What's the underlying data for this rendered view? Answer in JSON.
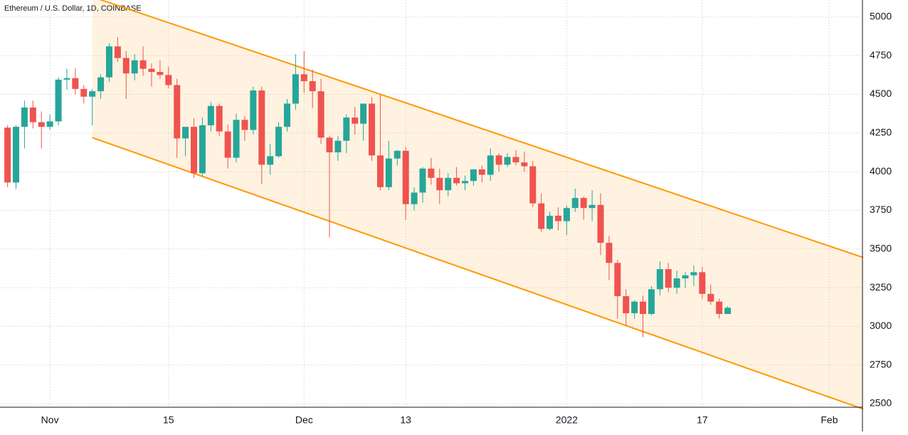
{
  "chart_data": {
    "type": "candlestick",
    "title": "Ethereum / U.S. Dollar, 1D, COINBASE",
    "categories": [
      null,
      null,
      null,
      null,
      null,
      "Nov",
      null,
      null,
      null,
      null,
      null,
      null,
      null,
      null,
      null,
      null,
      null,
      null,
      null,
      "15",
      null,
      null,
      null,
      null,
      null,
      null,
      null,
      null,
      null,
      null,
      null,
      null,
      null,
      null,
      null,
      "Dec",
      null,
      null,
      null,
      null,
      null,
      null,
      null,
      null,
      null,
      null,
      null,
      "13",
      null,
      null,
      null,
      null,
      null,
      null,
      null,
      null,
      null,
      null,
      null,
      null,
      null,
      null,
      null,
      null,
      null,
      null,
      "2022",
      null,
      null,
      null,
      null,
      null,
      null,
      null,
      null,
      null,
      null,
      null,
      null,
      null,
      null,
      null,
      "17",
      null,
      null,
      null,
      null,
      null,
      null,
      null,
      null,
      null,
      null,
      null,
      null,
      null,
      null,
      "Feb",
      null,
      null,
      null,
      null
    ],
    "open": [
      4285,
      3930,
      4290,
      4415,
      4320,
      4290,
      4325,
      4595,
      4605,
      4535,
      4485,
      4520,
      4610,
      4810,
      4735,
      4635,
      4720,
      4665,
      4645,
      4625,
      4560,
      4215,
      4290,
      3990,
      4300,
      4425,
      4260,
      4090,
      4335,
      4270,
      4525,
      4045,
      4100,
      4290,
      4440,
      4630,
      4585,
      4520,
      4220,
      4125,
      4200,
      4350,
      4310,
      4440,
      4105,
      3900,
      4085,
      4135,
      3790,
      3865,
      4020,
      3960,
      3880,
      3960,
      3925,
      3940,
      4015,
      3980,
      4105,
      4045,
      4095,
      4060,
      4035,
      3795,
      3630,
      3715,
      3680,
      3765,
      3830,
      3765,
      3785,
      3540,
      3410,
      3195,
      3085,
      3160,
      3080,
      3240,
      3370,
      3250,
      3310,
      3330,
      3350,
      3210,
      3160,
      3080,
      null,
      null,
      null,
      null,
      null,
      null,
      null,
      null,
      null,
      null,
      null,
      null,
      null,
      null,
      null,
      null
    ],
    "high": [
      4300,
      4300,
      4460,
      4460,
      4390,
      4370,
      4610,
      4665,
      4670,
      4560,
      4535,
      4630,
      4830,
      4870,
      4780,
      4760,
      4810,
      4700,
      4720,
      4680,
      4600,
      4290,
      4345,
      4350,
      4450,
      4440,
      4305,
      4375,
      4360,
      4550,
      4550,
      4180,
      4320,
      4470,
      4760,
      4780,
      4660,
      4600,
      4230,
      4230,
      4370,
      4420,
      4420,
      4480,
      4500,
      4200,
      4140,
      4160,
      3900,
      4030,
      4090,
      4020,
      3990,
      4030,
      3975,
      3990,
      4040,
      4150,
      4120,
      4120,
      4140,
      4130,
      4070,
      3860,
      3740,
      3770,
      3780,
      3890,
      3840,
      3880,
      3860,
      3585,
      3430,
      3240,
      3170,
      3200,
      3260,
      3420,
      3410,
      3360,
      3350,
      3395,
      3385,
      3270,
      3180,
      3130,
      null,
      null,
      null,
      null,
      null,
      null,
      null,
      null,
      null,
      null,
      null,
      null,
      null,
      null,
      null,
      null
    ],
    "low": [
      3900,
      3890,
      4150,
      4280,
      4150,
      4270,
      4300,
      4530,
      4500,
      4440,
      4300,
      4470,
      4580,
      4710,
      4470,
      4590,
      4620,
      4550,
      4600,
      4540,
      4090,
      4100,
      3960,
      3970,
      4260,
      4230,
      4020,
      4060,
      4200,
      4240,
      3920,
      3980,
      4090,
      4260,
      4400,
      4510,
      4410,
      4180,
      3575,
      4070,
      4120,
      4240,
      4200,
      4070,
      3880,
      3880,
      4040,
      3690,
      3750,
      3800,
      3915,
      3790,
      3840,
      3910,
      3880,
      3910,
      3930,
      3940,
      4000,
      4030,
      4040,
      4000,
      3770,
      3610,
      3620,
      3620,
      3590,
      3740,
      3690,
      3680,
      3460,
      3300,
      3050,
      3000,
      3050,
      2930,
      3070,
      3200,
      3220,
      3210,
      3250,
      3260,
      3180,
      3140,
      3050,
      3080,
      null,
      null,
      null,
      null,
      null,
      null,
      null,
      null,
      null,
      null,
      null,
      null,
      null,
      null,
      null,
      null
    ],
    "close": [
      3930,
      4290,
      4415,
      4320,
      4290,
      4325,
      4595,
      4605,
      4535,
      4485,
      4520,
      4610,
      4810,
      4735,
      4635,
      4720,
      4665,
      4645,
      4625,
      4560,
      4215,
      4290,
      3990,
      4300,
      4425,
      4260,
      4090,
      4335,
      4270,
      4525,
      4045,
      4100,
      4290,
      4440,
      4630,
      4585,
      4520,
      4220,
      4125,
      4200,
      4350,
      4310,
      4440,
      4105,
      3900,
      4085,
      4135,
      3790,
      3865,
      4020,
      3960,
      3880,
      3960,
      3925,
      3940,
      4015,
      3980,
      4105,
      4045,
      4095,
      4060,
      4035,
      3795,
      3630,
      3715,
      3680,
      3765,
      3830,
      3765,
      3785,
      3540,
      3410,
      3195,
      3085,
      3160,
      3080,
      3240,
      3370,
      3250,
      3310,
      3330,
      3350,
      3210,
      3160,
      3080,
      3120,
      null,
      null,
      null,
      null,
      null,
      null,
      null,
      null,
      null,
      null,
      null,
      null,
      null,
      null,
      null,
      null
    ],
    "up_color": "#26a69a",
    "down_color": "#ef5350",
    "channel": {
      "from": 10,
      "to": 101,
      "upper": [
        5130,
        3445
      ],
      "lower": [
        4220,
        2465
      ],
      "color": "#ff9800"
    },
    "ylim": [
      2477,
      5110
    ],
    "yticks": [
      2500,
      2750,
      3000,
      3250,
      3500,
      3750,
      4000,
      4250,
      4500,
      4750,
      5000
    ],
    "grid": true
  }
}
